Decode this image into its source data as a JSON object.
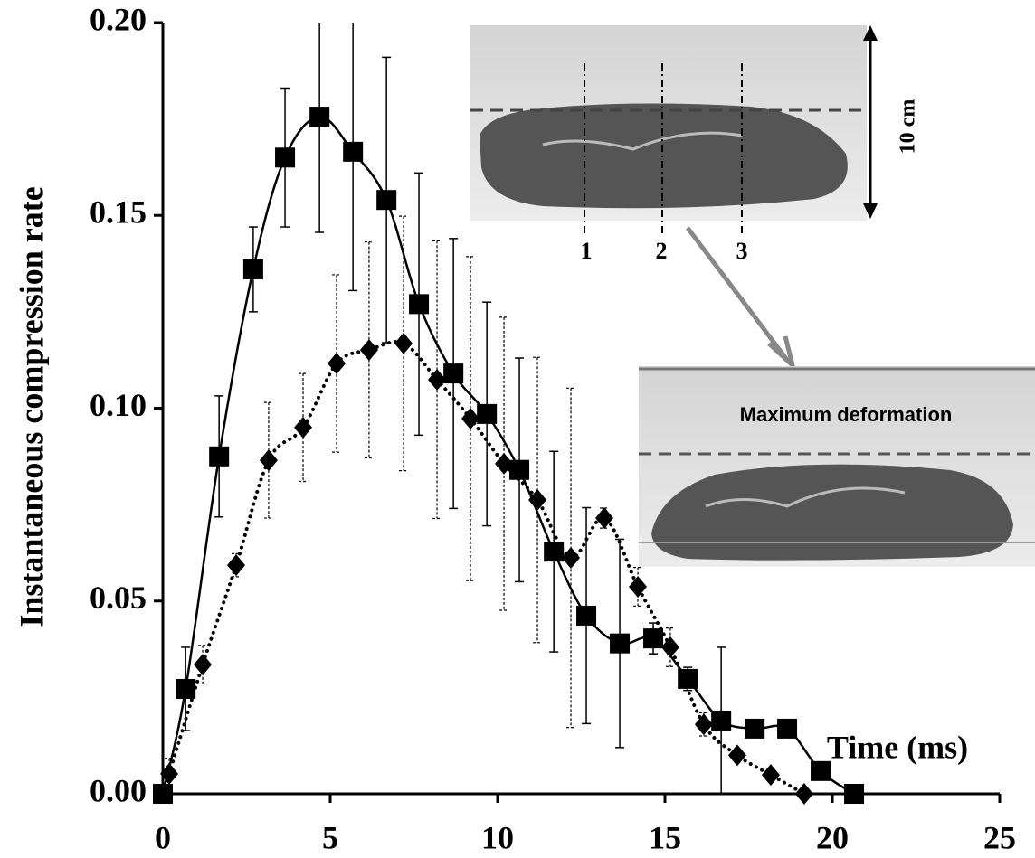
{
  "chart_data": {
    "type": "line",
    "y_label": "Instantaneous compression rate",
    "x_label": "Time (ms)",
    "annotations": {
      "scale": "10 cm",
      "cuts": [
        "1",
        "2",
        "3"
      ],
      "inset": "Maximum deformation"
    },
    "xlim": [
      0,
      25
    ],
    "xticks": [
      0,
      5,
      10,
      15,
      20,
      25
    ],
    "ylim": [
      0,
      0.2
    ],
    "yticks": [
      {
        "value": 0,
        "label": "0.00"
      },
      {
        "value": 0.05,
        "label": "0.05"
      },
      {
        "value": 0.1,
        "label": "0.10"
      },
      {
        "value": 0.15,
        "label": "0.15"
      },
      {
        "value": 0.2,
        "label": "0.20"
      }
    ],
    "series": [
      {
        "color": "#000000",
        "dash": "solid",
        "marker": "square",
        "x": [
          0,
          0.68,
          1.68,
          2.7,
          3.65,
          4.68,
          5.68,
          6.68,
          7.65,
          8.68,
          9.68,
          10.65,
          11.68,
          12.65,
          13.65,
          14.65,
          15.68,
          16.68,
          17.68,
          18.65,
          19.65,
          20.65
        ],
        "values": [
          0,
          0.0272,
          0.0875,
          0.136,
          0.165,
          0.1756,
          0.1665,
          0.154,
          0.127,
          0.109,
          0.0985,
          0.084,
          0.0628,
          0.0462,
          0.039,
          0.0403,
          0.0298,
          0.019,
          0.0169,
          0.0169,
          0.0059,
          0
        ],
        "errors": [
          null,
          0.0108,
          0.0157,
          0.011,
          0.018,
          0.03,
          0.036,
          0.037,
          0.034,
          0.035,
          0.029,
          0.029,
          0.026,
          0.028,
          0.027,
          0.004,
          0.003,
          0.019,
          null,
          null,
          null,
          null
        ]
      },
      {
        "color": "#000000",
        "dash": "dotted",
        "marker": "diamond",
        "x": [
          0.19,
          1.19,
          2.19,
          3.16,
          4.19,
          5.19,
          6.16,
          7.19,
          8.19,
          9.19,
          10.19,
          11.19,
          12.19,
          13.19,
          14.19,
          15.16,
          16.16,
          17.16,
          18.16,
          19.16
        ],
        "values": [
          0.0052,
          0.0335,
          0.0593,
          0.0865,
          0.095,
          0.1116,
          0.1151,
          0.1168,
          0.1074,
          0.0973,
          0.0856,
          0.0762,
          0.0612,
          0.0715,
          0.0537,
          0.038,
          0.018,
          0.01,
          0.0049,
          0
        ],
        "errors": [
          0.004,
          0.005,
          0.003,
          0.015,
          0.014,
          0.023,
          0.028,
          0.033,
          0.036,
          0.042,
          0.038,
          0.037,
          0.044,
          0.0026,
          0.005,
          0.005,
          0.003,
          null,
          null,
          null
        ]
      }
    ]
  }
}
